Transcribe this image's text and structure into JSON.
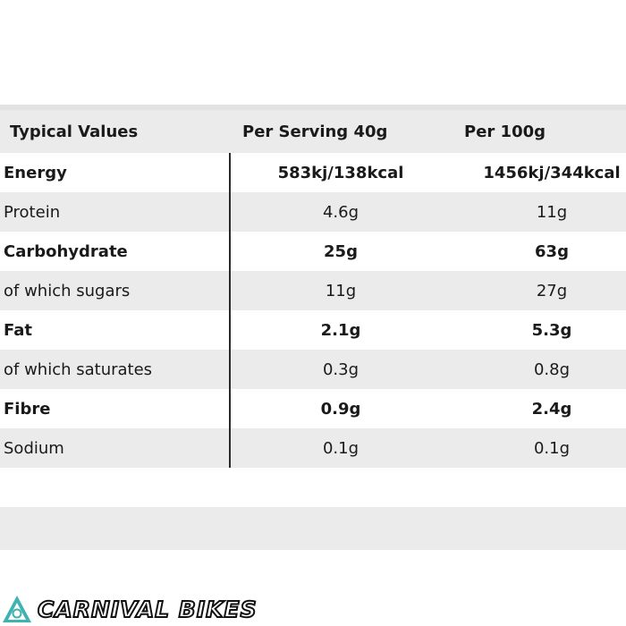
{
  "table": {
    "headers": {
      "label": "Typical Values",
      "per_serving": "Per Serving 40g",
      "per_100": "Per 100g"
    },
    "rows": [
      {
        "label": "Energy",
        "per_serving": "583kj/138kcal",
        "per_100": "1456kj/344kcal"
      },
      {
        "label": "Protein",
        "per_serving": "4.6g",
        "per_100": "11g"
      },
      {
        "label": "Carbohydrate",
        "per_serving": "25g",
        "per_100": "63g"
      },
      {
        "label": "of which sugars",
        "per_serving": "11g",
        "per_100": "27g"
      },
      {
        "label": "Fat",
        "per_serving": "2.1g",
        "per_100": "5.3g"
      },
      {
        "label": "of which saturates",
        "per_serving": "0.3g",
        "per_100": "0.8g"
      },
      {
        "label": "Fibre",
        "per_serving": "0.9g",
        "per_100": "2.4g"
      },
      {
        "label": "Sodium",
        "per_serving": "0.1g",
        "per_100": "0.1g"
      }
    ]
  },
  "brand": {
    "logo_text": "CARNIVAL BIKES",
    "logo_icon": "carnival-bikes-logo-icon",
    "accent_color": "#3fb3b0"
  }
}
